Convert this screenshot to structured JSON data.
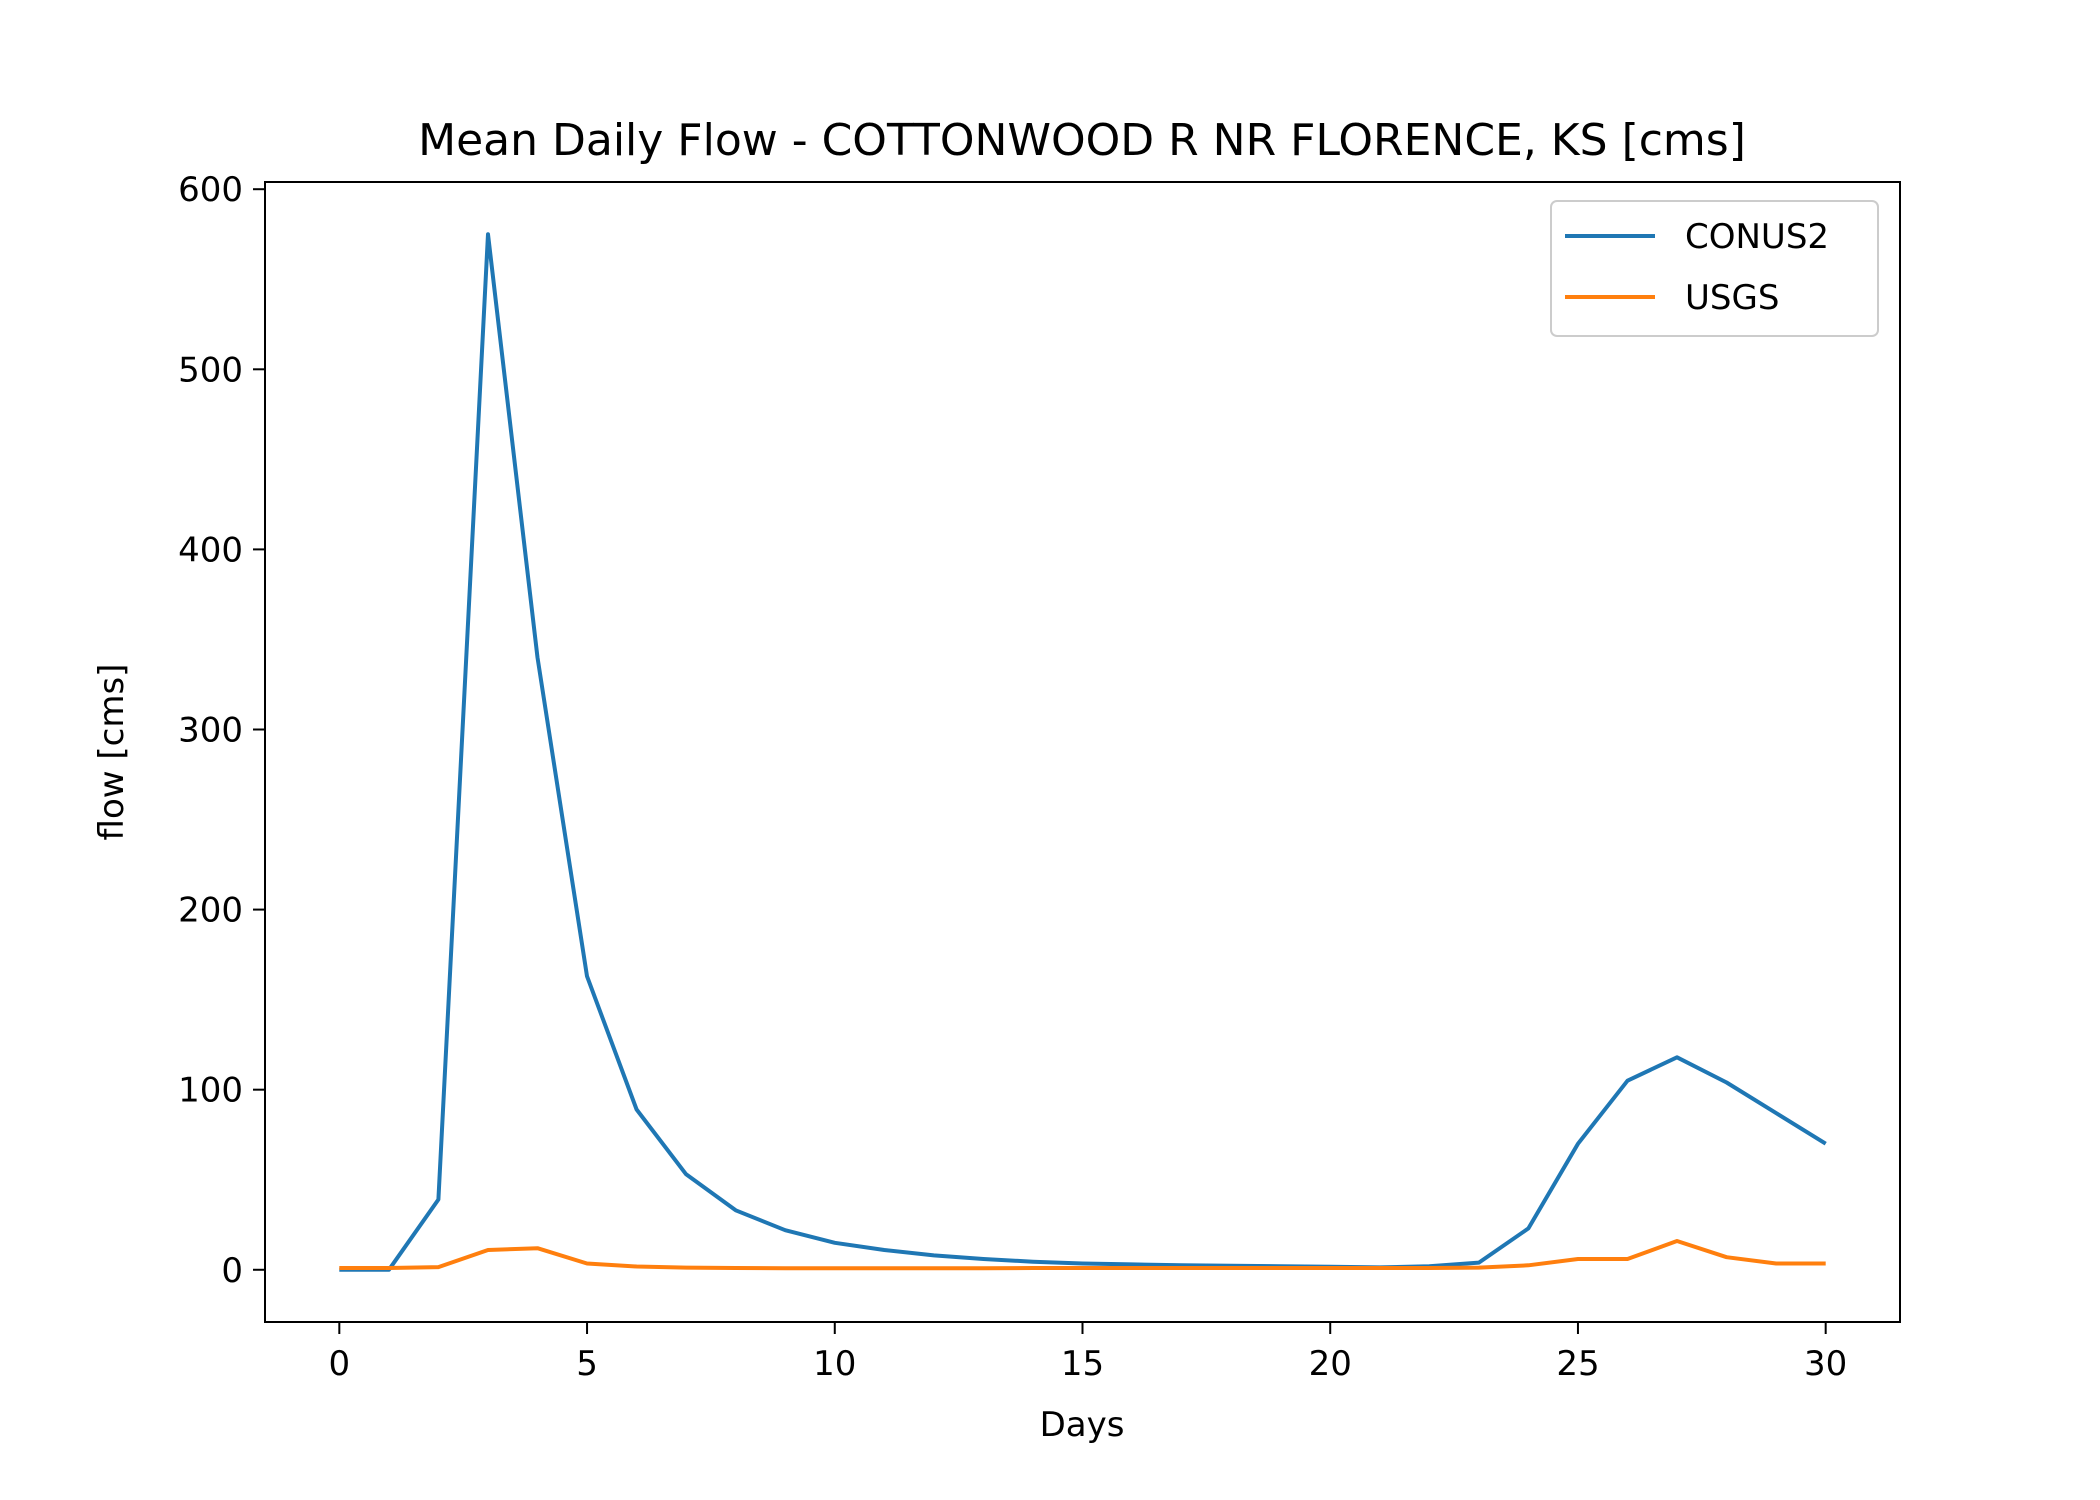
{
  "chart_data": {
    "type": "line",
    "title": "Mean Daily Flow - COTTONWOOD R NR FLORENCE, KS [cms]",
    "xlabel": "Days",
    "ylabel": "flow [cms]",
    "xlim": [
      -1.5,
      31.5
    ],
    "ylim": [
      -29,
      604
    ],
    "xticks": [
      0,
      5,
      10,
      15,
      20,
      25,
      30
    ],
    "yticks": [
      0,
      100,
      200,
      300,
      400,
      500,
      600
    ],
    "grid": false,
    "legend_position": "upper-right",
    "x": [
      0,
      1,
      2,
      3,
      4,
      5,
      6,
      7,
      8,
      9,
      10,
      11,
      12,
      13,
      14,
      15,
      16,
      17,
      18,
      19,
      20,
      21,
      22,
      23,
      24,
      25,
      26,
      27,
      28,
      29,
      30
    ],
    "series": [
      {
        "name": "CONUS2",
        "color": "#1f77b4",
        "values": [
          0,
          0,
          39,
          575,
          340,
          163,
          89,
          53,
          33,
          22,
          15,
          11,
          8,
          6,
          4.5,
          3.5,
          3,
          2.5,
          2.2,
          2,
          1.7,
          1.3,
          2,
          4,
          23,
          70,
          105,
          118,
          104,
          87,
          70
        ]
      },
      {
        "name": "USGS",
        "color": "#ff7f0e",
        "values": [
          1,
          1,
          1.5,
          11,
          12,
          3.5,
          1.8,
          1.2,
          1,
          0.9,
          0.9,
          0.9,
          0.9,
          0.9,
          1,
          1,
          1,
          1,
          1,
          1,
          1,
          1,
          1,
          1.2,
          2.5,
          6,
          6,
          16,
          7,
          3.5,
          3.5
        ]
      }
    ]
  }
}
